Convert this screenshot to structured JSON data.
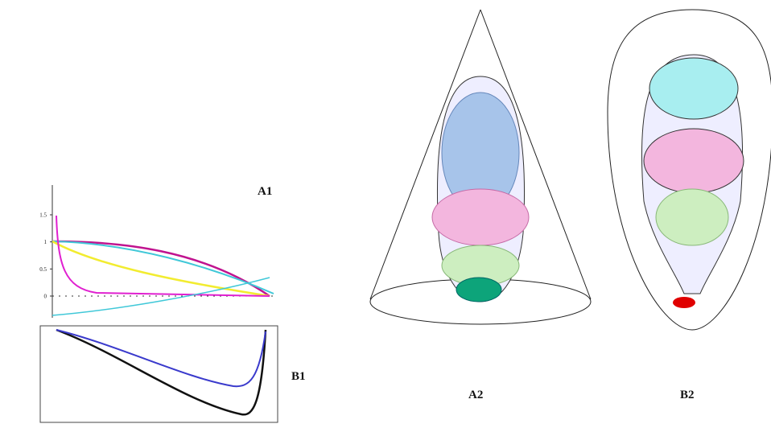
{
  "panels": {
    "a1": "A1",
    "b1": "B1",
    "a2": "A2",
    "b2": "B2"
  },
  "a1_axis": {
    "ylim": [
      0,
      1.5
    ],
    "yticks": [
      1.5,
      1,
      0.5,
      0
    ]
  }
}
